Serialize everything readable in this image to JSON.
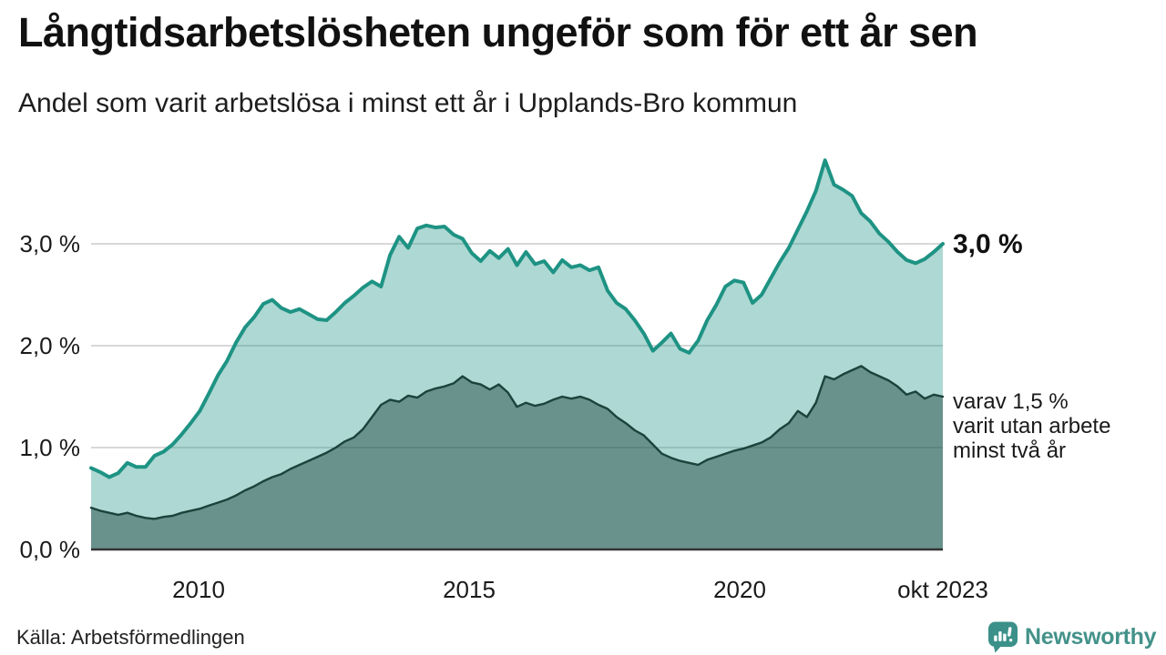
{
  "header": {
    "title": "Långtidsarbetslösheten ungeför som för ett år sen",
    "subtitle": "Andel som varit arbetslösa i minst ett år i Upplands-Bro kommun"
  },
  "axis": {
    "y_ticks": [
      {
        "label": "0,0 %",
        "value": 0
      },
      {
        "label": "1,0 %",
        "value": 1
      },
      {
        "label": "2,0 %",
        "value": 2
      },
      {
        "label": "3,0 %",
        "value": 3
      }
    ],
    "x_ticks": [
      {
        "label": "2010"
      },
      {
        "label": "2015"
      },
      {
        "label": "2020"
      },
      {
        "label": "okt 2023"
      }
    ]
  },
  "annotations": {
    "end_label": "3,0 %",
    "series2_line1": "varav 1,5 %",
    "series2_line2": "varit utan arbete",
    "series2_line3": "minst två år"
  },
  "footer": {
    "source": "Källa: Arbetsförmedlingen",
    "brand": "Newsworthy"
  },
  "colors": {
    "line1": "#1e9384",
    "fill1": "rgba(30,147,132,0.36)",
    "line2": "#1c423c",
    "fill2": "rgba(22,62,56,0.45)",
    "grid": "#d8d8d8",
    "baseline": "#333333",
    "brand": "#3b9189"
  },
  "chart_data": {
    "type": "area",
    "title": "Långtidsarbetslösheten ungeför som för ett år sen",
    "subtitle": "Andel som varit arbetslösa i minst ett år i Upplands-Bro kommun",
    "y_unit": "%",
    "ylim": [
      0,
      4
    ],
    "y_tick_values": [
      0,
      1,
      2,
      3
    ],
    "x_range": [
      "2008-01",
      "2023-10"
    ],
    "x_sampling_months": 2,
    "x_tick_labels": [
      "2010",
      "2015",
      "2020",
      "okt 2023"
    ],
    "grid": true,
    "legend": "inline-annotations",
    "series": [
      {
        "name": "Andel arbetslösa minst ett år",
        "end_value": 3.0,
        "end_label": "3,0 %",
        "values": [
          0.8,
          0.76,
          0.71,
          0.75,
          0.85,
          0.81,
          0.81,
          0.92,
          0.96,
          1.03,
          1.13,
          1.24,
          1.36,
          1.53,
          1.71,
          1.85,
          2.03,
          2.18,
          2.28,
          2.41,
          2.45,
          2.37,
          2.33,
          2.36,
          2.31,
          2.26,
          2.25,
          2.33,
          2.42,
          2.49,
          2.57,
          2.63,
          2.58,
          2.89,
          3.07,
          2.96,
          3.15,
          3.18,
          3.16,
          3.17,
          3.09,
          3.05,
          2.91,
          2.83,
          2.93,
          2.86,
          2.95,
          2.79,
          2.92,
          2.8,
          2.83,
          2.72,
          2.84,
          2.77,
          2.79,
          2.74,
          2.77,
          2.54,
          2.42,
          2.36,
          2.25,
          2.12,
          1.95,
          2.03,
          2.12,
          1.97,
          1.93,
          2.05,
          2.25,
          2.4,
          2.58,
          2.64,
          2.62,
          2.42,
          2.5,
          2.66,
          2.82,
          2.96,
          3.14,
          3.32,
          3.52,
          3.82,
          3.58,
          3.53,
          3.47,
          3.3,
          3.22,
          3.1,
          3.02,
          2.92,
          2.84,
          2.81,
          2.85,
          2.92,
          3.0
        ]
      },
      {
        "name": "varav utan arbete minst två år",
        "end_value": 1.5,
        "end_label": "varav 1,5 % varit utan arbete minst två år",
        "values": [
          0.41,
          0.38,
          0.36,
          0.34,
          0.36,
          0.33,
          0.31,
          0.3,
          0.32,
          0.33,
          0.36,
          0.38,
          0.4,
          0.43,
          0.46,
          0.49,
          0.53,
          0.58,
          0.62,
          0.67,
          0.71,
          0.74,
          0.79,
          0.83,
          0.87,
          0.91,
          0.95,
          1.0,
          1.06,
          1.1,
          1.18,
          1.3,
          1.42,
          1.47,
          1.45,
          1.51,
          1.49,
          1.55,
          1.58,
          1.6,
          1.63,
          1.7,
          1.64,
          1.62,
          1.57,
          1.62,
          1.54,
          1.4,
          1.44,
          1.41,
          1.43,
          1.47,
          1.5,
          1.48,
          1.5,
          1.47,
          1.42,
          1.38,
          1.3,
          1.24,
          1.17,
          1.12,
          1.03,
          0.94,
          0.9,
          0.87,
          0.85,
          0.83,
          0.88,
          0.91,
          0.94,
          0.97,
          0.99,
          1.02,
          1.05,
          1.1,
          1.18,
          1.24,
          1.36,
          1.3,
          1.44,
          1.7,
          1.67,
          1.72,
          1.76,
          1.8,
          1.74,
          1.7,
          1.66,
          1.6,
          1.52,
          1.55,
          1.48,
          1.52,
          1.5
        ]
      }
    ]
  }
}
